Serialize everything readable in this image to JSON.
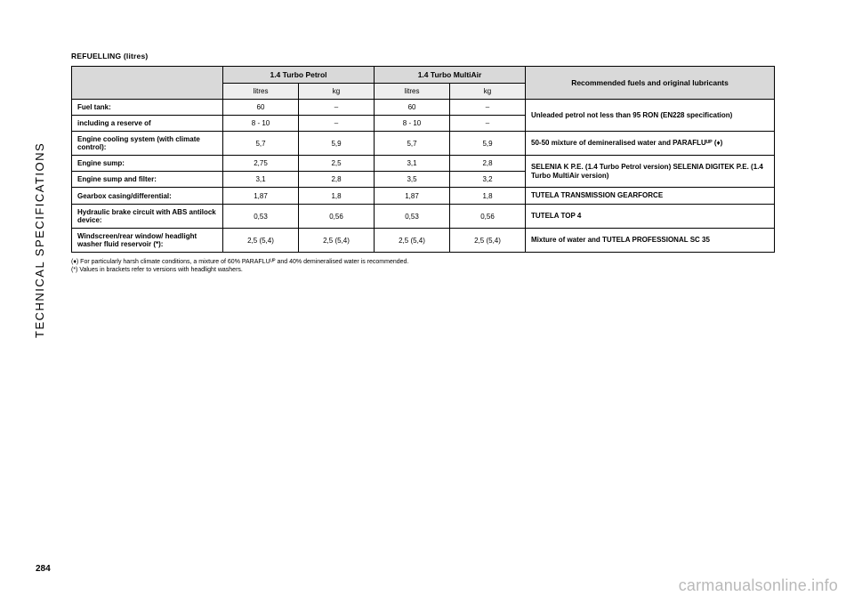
{
  "side_label": "TECHNICAL SPECIFICATIONS",
  "section_title": "REFUELLING (litres)",
  "page_number": "284",
  "watermark": "carmanualsonline.info",
  "table": {
    "head": {
      "col_engine_1": "1.4 Turbo Petrol",
      "col_engine_2": "1.4 Turbo MultiAir",
      "col_rec": "Recommended fuels and original lubricants",
      "sub_litres": "litres",
      "sub_kg": "kg"
    },
    "rows": [
      {
        "label": "Fuel tank:",
        "e1_l": "60",
        "e1_k": "–",
        "e2_l": "60",
        "e2_k": "–",
        "rec": "Unleaded petrol not less than 95 RON (EN228 specification)",
        "rowspan_rec": 2
      },
      {
        "label": "including a reserve of",
        "e1_l": "8 - 10",
        "e1_k": "–",
        "e2_l": "8 - 10",
        "e2_k": "–"
      },
      {
        "label": "Engine cooling system (with climate control):",
        "e1_l": "5,7",
        "e1_k": "5,9",
        "e2_l": "5,7",
        "e2_k": "5,9",
        "rec": "50-50 mixture of demineralised water and PARAFLUᵁᴾ (♦)"
      },
      {
        "label": "Engine sump:",
        "e1_l": "2,75",
        "e1_k": "2,5",
        "e2_l": "3,1",
        "e2_k": "2,8",
        "rec": "SELENIA K P.E. (1.4 Turbo Petrol version) SELENIA DIGITEK P.E. (1.4 Turbo MultiAir version)",
        "rowspan_rec": 2
      },
      {
        "label": "Engine sump and filter:",
        "e1_l": "3,1",
        "e1_k": "2,8",
        "e2_l": "3,5",
        "e2_k": "3,2"
      },
      {
        "label": "Gearbox casing/differential:",
        "e1_l": "1,87",
        "e1_k": "1,8",
        "e2_l": "1,87",
        "e2_k": "1,8",
        "rec": "TUTELA TRANSMISSION GEARFORCE"
      },
      {
        "label": "Hydraulic brake circuit with ABS antilock device:",
        "e1_l": "0,53",
        "e1_k": "0,56",
        "e2_l": "0,53",
        "e2_k": "0,56",
        "rec": "TUTELA TOP 4"
      },
      {
        "label": "Windscreen/rear window/ headlight washer fluid reservoir (*):",
        "e1_l": "2,5 (5,4)",
        "e1_k": "2,5 (5,4)",
        "e2_l": "2,5 (5,4)",
        "e2_k": "2,5 (5,4)",
        "rec": "Mixture of water and TUTELA PROFESSIONAL SC 35"
      }
    ]
  },
  "footnotes": {
    "f1": "(♦) For particularly harsh climate conditions, a mixture of 60% PARAFLUᵁᴾ and 40% demineralised water is recommended.",
    "f2": "(*) Values in brackets refer to versions with headlight washers."
  },
  "colors": {
    "header_bg": "#d9d9d9",
    "subheader_bg": "#eeeeee",
    "border": "#000000",
    "text": "#000000",
    "background": "#ffffff",
    "watermark": "rgba(0,0,0,0.28)"
  }
}
